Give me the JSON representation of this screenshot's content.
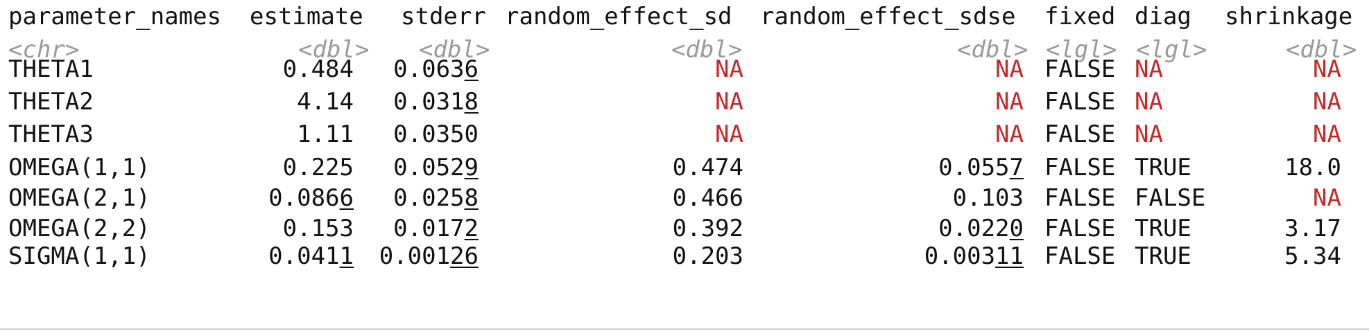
{
  "columns": [
    {
      "name": "parameter_names",
      "type": "<chr>"
    },
    {
      "name": "estimate",
      "type": "<dbl>"
    },
    {
      "name": "stderr",
      "type": "<dbl>"
    },
    {
      "name": "random_effect_sd",
      "type": "<dbl>"
    },
    {
      "name": "random_effect_sdse",
      "type": "<dbl>"
    },
    {
      "name": "fixed",
      "type": "<lgl>"
    },
    {
      "name": "diag",
      "type": "<lgl>"
    },
    {
      "name": "shrinkage",
      "type": "<dbl>"
    }
  ],
  "rows": [
    {
      "parameter_names": "THETA1",
      "estimate": {
        "main": "0.484",
        "sub": ""
      },
      "stderr": {
        "main": "0.063",
        "sub": "6"
      },
      "random_effect_sd": {
        "main": "NA",
        "sub": ""
      },
      "random_effect_sdse": {
        "main": "NA",
        "sub": ""
      },
      "fixed": "FALSE",
      "diag": "NA",
      "shrinkage": {
        "main": "NA",
        "sub": ""
      }
    },
    {
      "parameter_names": "THETA2",
      "estimate": {
        "main": "4.14",
        "sub": ""
      },
      "stderr": {
        "main": "0.031",
        "sub": "8"
      },
      "random_effect_sd": {
        "main": "NA",
        "sub": ""
      },
      "random_effect_sdse": {
        "main": "NA",
        "sub": ""
      },
      "fixed": "FALSE",
      "diag": "NA",
      "shrinkage": {
        "main": "NA",
        "sub": ""
      }
    },
    {
      "parameter_names": "THETA3",
      "estimate": {
        "main": "1.11",
        "sub": ""
      },
      "stderr": {
        "main": "0.0350",
        "sub": ""
      },
      "random_effect_sd": {
        "main": "NA",
        "sub": ""
      },
      "random_effect_sdse": {
        "main": "NA",
        "sub": ""
      },
      "fixed": "FALSE",
      "diag": "NA",
      "shrinkage": {
        "main": "NA",
        "sub": ""
      }
    },
    {
      "parameter_names": "OMEGA(1,1)",
      "estimate": {
        "main": "0.225",
        "sub": ""
      },
      "stderr": {
        "main": "0.052",
        "sub": "9"
      },
      "random_effect_sd": {
        "main": "0.474",
        "sub": ""
      },
      "random_effect_sdse": {
        "main": "0.055",
        "sub": "7"
      },
      "fixed": "FALSE",
      "diag": "TRUE",
      "shrinkage": {
        "main": "18.0",
        "sub": ""
      }
    },
    {
      "parameter_names": "OMEGA(2,1)",
      "estimate": {
        "main": "0.086",
        "sub": "6"
      },
      "stderr": {
        "main": "0.025",
        "sub": "8"
      },
      "random_effect_sd": {
        "main": "0.466",
        "sub": ""
      },
      "random_effect_sdse": {
        "main": "0.103",
        "sub": ""
      },
      "fixed": "FALSE",
      "diag": "FALSE",
      "shrinkage": {
        "main": "NA",
        "sub": ""
      }
    },
    {
      "parameter_names": "OMEGA(2,2)",
      "estimate": {
        "main": "0.153",
        "sub": ""
      },
      "stderr": {
        "main": "0.017",
        "sub": "2"
      },
      "random_effect_sd": {
        "main": "0.392",
        "sub": ""
      },
      "random_effect_sdse": {
        "main": "0.022",
        "sub": "0"
      },
      "fixed": "FALSE",
      "diag": "TRUE",
      "shrinkage": {
        "main": "3.17",
        "sub": ""
      }
    },
    {
      "parameter_names": "SIGMA(1,1)",
      "estimate": {
        "main": "0.041",
        "sub": "1"
      },
      "stderr": {
        "main": "0.001",
        "sub": "26"
      },
      "random_effect_sd": {
        "main": "0.203",
        "sub": ""
      },
      "random_effect_sdse": {
        "main": "0.003",
        "sub": "11"
      },
      "fixed": "FALSE",
      "diag": "TRUE",
      "shrinkage": {
        "main": "5.34",
        "sub": ""
      }
    }
  ],
  "colors": {
    "text": "#111111",
    "type_label": "#9a9a9a",
    "na": "#c62828"
  }
}
